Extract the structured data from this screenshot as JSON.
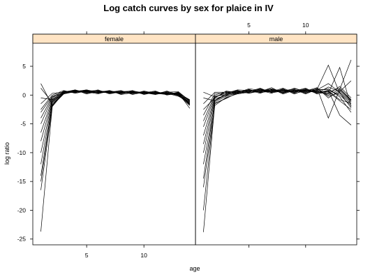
{
  "chart_data": {
    "type": "line",
    "title": "Log catch curves by sex for plaice in IV",
    "xlabel": "age",
    "ylabel": "log ratio",
    "xlim": [
      0.3,
      14.5
    ],
    "ylim": [
      -26,
      9
    ],
    "x_ticks": [
      5,
      10
    ],
    "y_ticks": [
      5,
      0,
      -5,
      -10,
      -15,
      -20,
      -25
    ],
    "strip_color": "#ffe4c4",
    "line_color": "#000000",
    "ages": [
      1,
      2,
      3,
      4,
      5,
      6,
      7,
      8,
      9,
      10,
      11,
      12,
      13,
      14
    ],
    "panels": [
      {
        "name": "female",
        "series": [
          {
            "values": [
              -23.7,
              -1.9,
              0.6,
              0.7,
              0.8,
              0.5,
              0.6,
              0.4,
              0.5,
              0.3,
              0.4,
              0.3,
              0.2,
              -1.2
            ]
          },
          {
            "values": [
              -16.5,
              -2.0,
              0.4,
              0.6,
              0.7,
              0.6,
              0.5,
              0.5,
              0.3,
              0.4,
              0.2,
              0.3,
              0.1,
              -1.6
            ]
          },
          {
            "values": [
              -15.0,
              -1.7,
              0.5,
              0.7,
              0.6,
              0.6,
              0.4,
              0.5,
              0.4,
              0.3,
              0.3,
              0.2,
              0.3,
              -1.4
            ]
          },
          {
            "values": [
              -14.0,
              -1.5,
              0.3,
              0.8,
              0.5,
              0.7,
              0.6,
              0.3,
              0.6,
              0.3,
              0.4,
              0.1,
              0.2,
              -1.0
            ]
          },
          {
            "values": [
              -12.0,
              -1.2,
              0.6,
              0.6,
              0.9,
              0.4,
              0.7,
              0.5,
              0.4,
              0.5,
              0.2,
              0.4,
              0.0,
              -1.8
            ]
          },
          {
            "values": [
              -10.0,
              -1.0,
              0.2,
              0.7,
              0.7,
              0.8,
              0.3,
              0.6,
              0.5,
              0.2,
              0.6,
              0.2,
              0.4,
              -0.9
            ]
          },
          {
            "values": [
              -8.0,
              -0.9,
              0.4,
              0.5,
              0.6,
              0.5,
              0.8,
              0.2,
              0.7,
              0.4,
              0.1,
              0.5,
              0.1,
              -1.5
            ]
          },
          {
            "values": [
              -6.5,
              -0.7,
              0.5,
              0.9,
              0.4,
              0.6,
              0.5,
              0.7,
              0.3,
              0.6,
              0.3,
              0.1,
              0.5,
              -1.1
            ]
          },
          {
            "values": [
              -5.0,
              -0.5,
              0.7,
              0.4,
              0.8,
              0.3,
              0.6,
              0.4,
              0.8,
              0.1,
              0.5,
              0.3,
              -0.2,
              -1.3
            ]
          },
          {
            "values": [
              -4.0,
              -0.3,
              0.3,
              0.6,
              0.5,
              0.9,
              0.2,
              0.6,
              0.2,
              0.7,
              0.3,
              0.6,
              0.2,
              -1.7
            ]
          },
          {
            "values": [
              -3.0,
              -0.2,
              0.6,
              0.8,
              0.3,
              0.5,
              0.7,
              0.3,
              0.5,
              0.4,
              0.7,
              0.0,
              0.3,
              -0.8
            ]
          },
          {
            "values": [
              -2.5,
              0.0,
              0.8,
              0.3,
              0.7,
              0.4,
              0.5,
              0.8,
              0.1,
              0.5,
              0.4,
              0.4,
              -0.1,
              -1.5
            ]
          },
          {
            "values": [
              -1.5,
              0.3,
              0.5,
              0.9,
              0.2,
              0.7,
              0.3,
              0.5,
              0.6,
              0.2,
              0.5,
              0.2,
              0.4,
              -2.3
            ]
          },
          {
            "values": [
              -0.5,
              -0.8,
              0.6,
              0.5,
              0.6,
              0.2,
              0.8,
              0.1,
              0.4,
              0.6,
              0.1,
              0.7,
              0.0,
              -1.2
            ]
          },
          {
            "values": [
              1.2,
              -1.3,
              0.4,
              0.7,
              0.5,
              0.6,
              0.4,
              0.6,
              0.7,
              0.3,
              0.6,
              0.1,
              0.5,
              -1.6
            ]
          },
          {
            "values": [
              2.0,
              -1.8,
              0.2,
              0.6,
              0.9,
              0.5,
              0.6,
              0.3,
              0.5,
              0.5,
              0.2,
              0.5,
              0.6,
              -1.0
            ]
          }
        ]
      },
      {
        "name": "male",
        "series": [
          {
            "values": [
              -23.8,
              -1.5,
              -0.5,
              0.3,
              0.6,
              0.8,
              0.5,
              0.9,
              0.6,
              0.8,
              0.7,
              0.5,
              1.2,
              -0.8
            ]
          },
          {
            "values": [
              -20.0,
              -1.2,
              -0.2,
              0.5,
              0.8,
              0.6,
              0.9,
              0.4,
              0.9,
              0.5,
              1.0,
              5.2,
              0.3,
              -1.5
            ]
          },
          {
            "values": [
              -16.0,
              -1.8,
              -0.4,
              0.2,
              0.5,
              1.0,
              0.7,
              0.8,
              0.5,
              0.9,
              0.6,
              0.3,
              4.8,
              -2.0
            ]
          },
          {
            "values": [
              -14.5,
              -1.0,
              0.0,
              0.6,
              0.4,
              0.7,
              1.1,
              0.6,
              0.8,
              0.3,
              1.2,
              -4.0,
              1.0,
              6.1
            ]
          },
          {
            "values": [
              -12.0,
              -1.4,
              -0.6,
              0.4,
              0.9,
              0.5,
              0.6,
              1.2,
              0.4,
              1.0,
              0.4,
              0.8,
              -3.5,
              -5.2
            ]
          },
          {
            "values": [
              -10.0,
              -0.9,
              0.2,
              0.7,
              0.6,
              1.2,
              0.4,
              0.7,
              1.1,
              0.6,
              0.9,
              2.0,
              0.5,
              -1.2
            ]
          },
          {
            "values": [
              -8.5,
              -0.6,
              -0.1,
              0.3,
              1.0,
              0.4,
              0.8,
              0.5,
              0.7,
              1.2,
              0.2,
              0.6,
              -1.0,
              -2.5
            ]
          },
          {
            "values": [
              -7.0,
              -0.4,
              0.4,
              0.8,
              0.3,
              0.9,
              0.6,
              1.0,
              0.3,
              0.7,
              1.3,
              -0.5,
              0.8,
              -1.0
            ]
          },
          {
            "values": [
              -5.5,
              -0.2,
              0.1,
              0.5,
              0.7,
              0.6,
              1.3,
              0.3,
              0.9,
              0.4,
              0.8,
              1.1,
              -0.3,
              -3.0
            ]
          },
          {
            "values": [
              -4.5,
              0.0,
              0.6,
              0.2,
              0.5,
              1.1,
              0.5,
              0.9,
              0.6,
              1.1,
              0.5,
              0.2,
              1.5,
              -0.5
            ]
          },
          {
            "values": [
              -3.5,
              0.3,
              0.3,
              0.9,
              0.8,
              0.3,
              1.0,
              0.6,
              1.0,
              0.2,
              1.0,
              0.9,
              0.0,
              -1.8
            ]
          },
          {
            "values": [
              -2.5,
              -0.5,
              0.7,
              0.4,
              1.1,
              0.8,
              0.3,
              1.1,
              0.2,
              0.9,
              0.3,
              1.4,
              0.6,
              2.5
            ]
          },
          {
            "values": [
              -1.5,
              0.5,
              0.5,
              0.7,
              0.3,
              0.7,
              0.9,
              0.4,
              1.2,
              0.6,
              0.7,
              0.0,
              1.0,
              -0.9
            ]
          },
          {
            "values": [
              -0.5,
              -1.0,
              0.2,
              0.6,
              0.6,
              1.0,
              0.7,
              0.8,
              0.5,
              1.0,
              0.4,
              0.7,
              -0.8,
              -1.4
            ]
          },
          {
            "values": [
              0.5,
              -0.3,
              0.4,
              0.3,
              0.9,
              0.5,
              1.1,
              0.2,
              0.8,
              0.7,
              1.1,
              -0.2,
              0.4,
              -2.2
            ]
          }
        ]
      }
    ]
  }
}
